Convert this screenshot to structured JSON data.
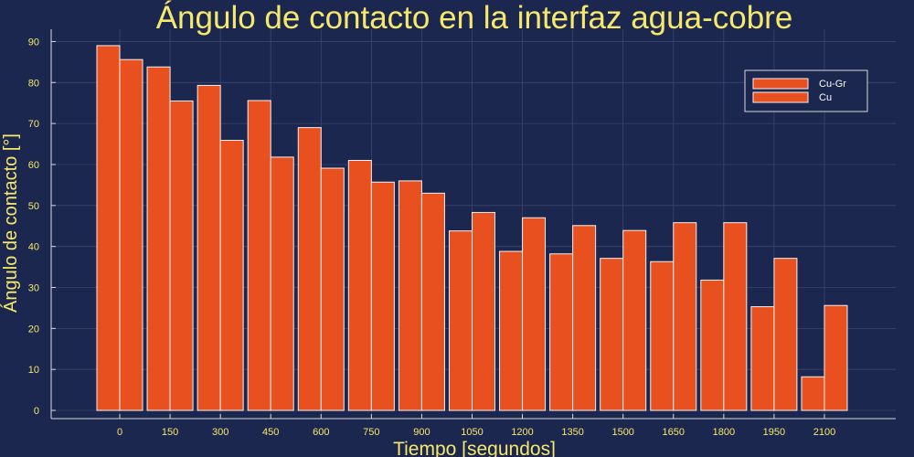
{
  "chart_data": {
    "type": "bar",
    "title": "Ángulo de contacto en la interfaz agua-cobre",
    "xlabel": "Tiempo [segundos]",
    "ylabel": "Ángulo de contacto [°]",
    "categories": [
      "0",
      "150",
      "300",
      "450",
      "600",
      "750",
      "900",
      "1050",
      "1200",
      "1350",
      "1500",
      "1650",
      "1800",
      "1950",
      "2100"
    ],
    "xticks": [
      "0",
      "150",
      "300",
      "450",
      "600",
      "750",
      "900",
      "1050",
      "1200",
      "1350",
      "1500",
      "1650",
      "1800",
      "1950",
      "2100"
    ],
    "yticks": [
      "0",
      "10",
      "20",
      "30",
      "40",
      "50",
      "60",
      "70",
      "80",
      "90"
    ],
    "ylim": [
      -2,
      93
    ],
    "grid": true,
    "legend_position": "top-right",
    "series": [
      {
        "name": "Cu-Gr",
        "color": "#e8501f",
        "values": [
          89,
          83.8,
          79.3,
          75.6,
          69,
          61,
          56,
          43.8,
          38.8,
          38.2,
          37.1,
          36.3,
          31.8,
          25.3,
          8.2
        ]
      },
      {
        "name": "Cu",
        "color": "#e8501f",
        "values": [
          85.6,
          75.5,
          65.9,
          61.8,
          59.1,
          55.7,
          53,
          48.3,
          47,
          45.1,
          43.9,
          45.8,
          45.8,
          37.1,
          25.6
        ]
      }
    ]
  },
  "colors": {
    "background": "#1c2750",
    "text": "#f5e86a",
    "axis": "#d8d8d8",
    "grid": "#3a4670",
    "bar_edge": "#f2f2f2",
    "legend_bg": "#1c2750",
    "legend_border": "#d8d8d8",
    "legend_text": "#ffffff"
  }
}
